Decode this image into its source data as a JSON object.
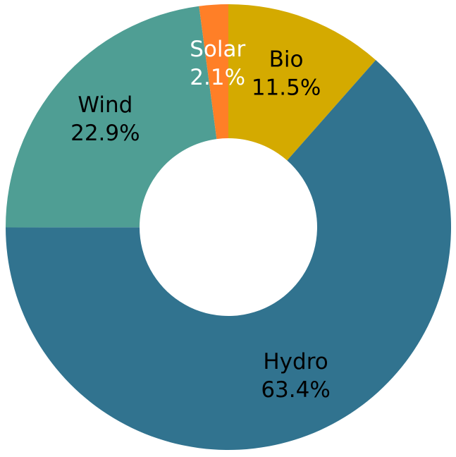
{
  "chart_data": {
    "type": "donut",
    "categories": [
      "Bio",
      "Hydro",
      "Wind",
      "Solar"
    ],
    "values": [
      11.5,
      63.4,
      22.9,
      2.1
    ],
    "value_labels": [
      "11.5%",
      "63.4%",
      "22.9%",
      "2.1%"
    ],
    "colors": [
      "#d4aa00",
      "#31738f",
      "#4f9e94",
      "#ff7f27"
    ],
    "label_colors": [
      "#000000",
      "#000000",
      "#000000",
      "#ffffff"
    ]
  }
}
